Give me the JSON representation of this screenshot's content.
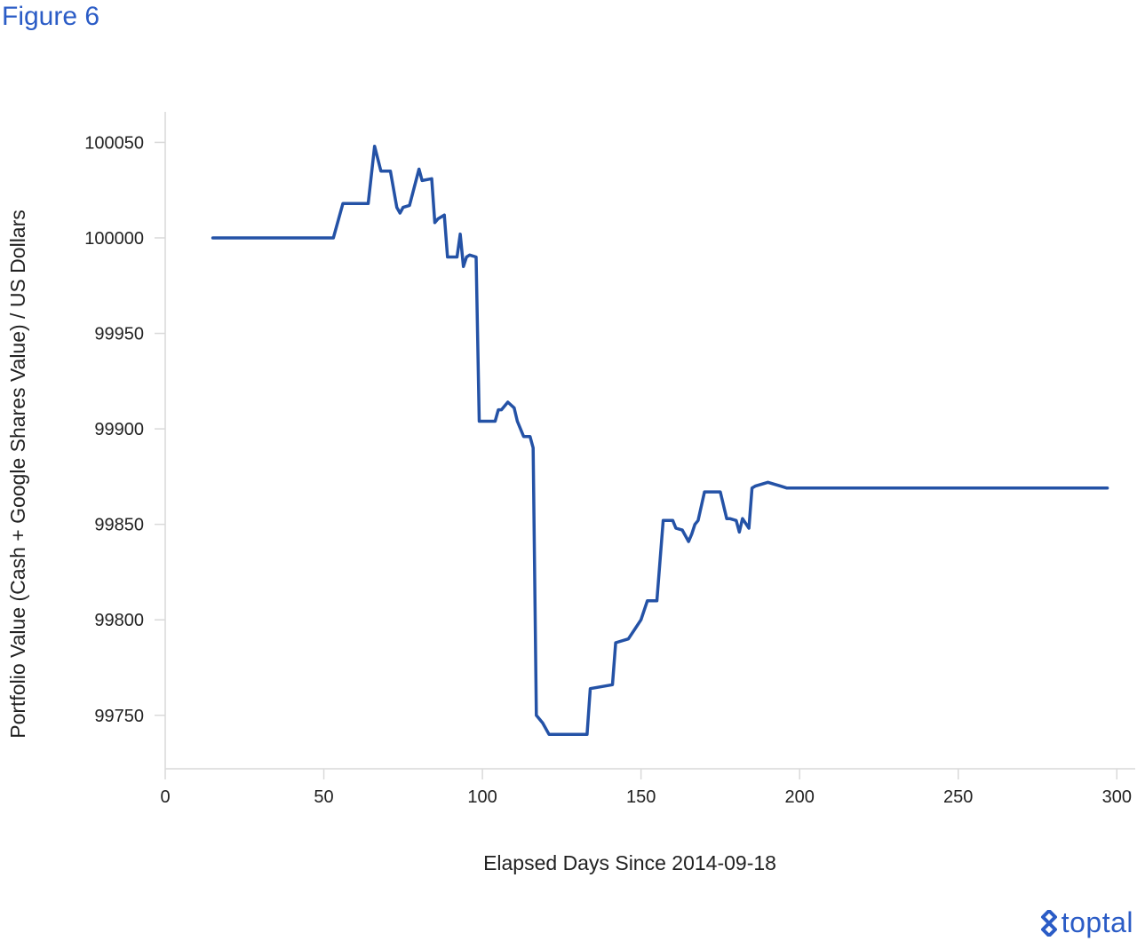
{
  "figure": {
    "title": "Figure 6"
  },
  "logo": {
    "text": "toptal"
  },
  "colors": {
    "line": "#2452a6",
    "axis": "#d9d9d9",
    "accent": "#2b5cc6",
    "text": "#222222"
  },
  "chart_data": {
    "type": "line",
    "title": "",
    "xlabel": "Elapsed Days Since 2014-09-18",
    "ylabel": "Portfolio Value (Cash + Google Shares Value) / US Dollars",
    "xlim": [
      0,
      303
    ],
    "ylim": [
      99722,
      100066
    ],
    "x_ticks": [
      0,
      50,
      100,
      150,
      200,
      250,
      300
    ],
    "y_ticks": [
      99750,
      99800,
      99850,
      99900,
      99950,
      100000,
      100050
    ],
    "grid": false,
    "legend": "none",
    "series": [
      {
        "name": "",
        "x": [
          15,
          53,
          56,
          64,
          66,
          68,
          71,
          73,
          74,
          75,
          77,
          80,
          81,
          84,
          85,
          86,
          88,
          89,
          90,
          92,
          93,
          94,
          95,
          96,
          98,
          99,
          100,
          104,
          105,
          106,
          108,
          110,
          111,
          113,
          114,
          115,
          116,
          117,
          119,
          121,
          133,
          134,
          141,
          142,
          146,
          148,
          150,
          152,
          155,
          157,
          160,
          161,
          163,
          165,
          166,
          167,
          168,
          170,
          171,
          175,
          177,
          178,
          180,
          181,
          182,
          184,
          185,
          186,
          190,
          194,
          196,
          297
        ],
        "y": [
          100000,
          100000,
          100018,
          100018,
          100048,
          100035,
          100035,
          100016,
          100013,
          100016,
          100017,
          100036,
          100030,
          100031,
          100008,
          100010,
          100012,
          99990,
          99990,
          99990,
          100002,
          99985,
          99990,
          99991,
          99990,
          99904,
          99904,
          99904,
          99910,
          99910,
          99914,
          99911,
          99904,
          99896,
          99896,
          99896,
          99890,
          99750,
          99746,
          99740,
          99740,
          99764,
          99766,
          99788,
          99790,
          99795,
          99800,
          99810,
          99810,
          99852,
          99852,
          99848,
          99847,
          99841,
          99845,
          99850,
          99852,
          99867,
          99867,
          99867,
          99853,
          99853,
          99852,
          99846,
          99853,
          99848,
          99869,
          99870,
          99872,
          99870,
          99869,
          99869
        ]
      }
    ]
  }
}
